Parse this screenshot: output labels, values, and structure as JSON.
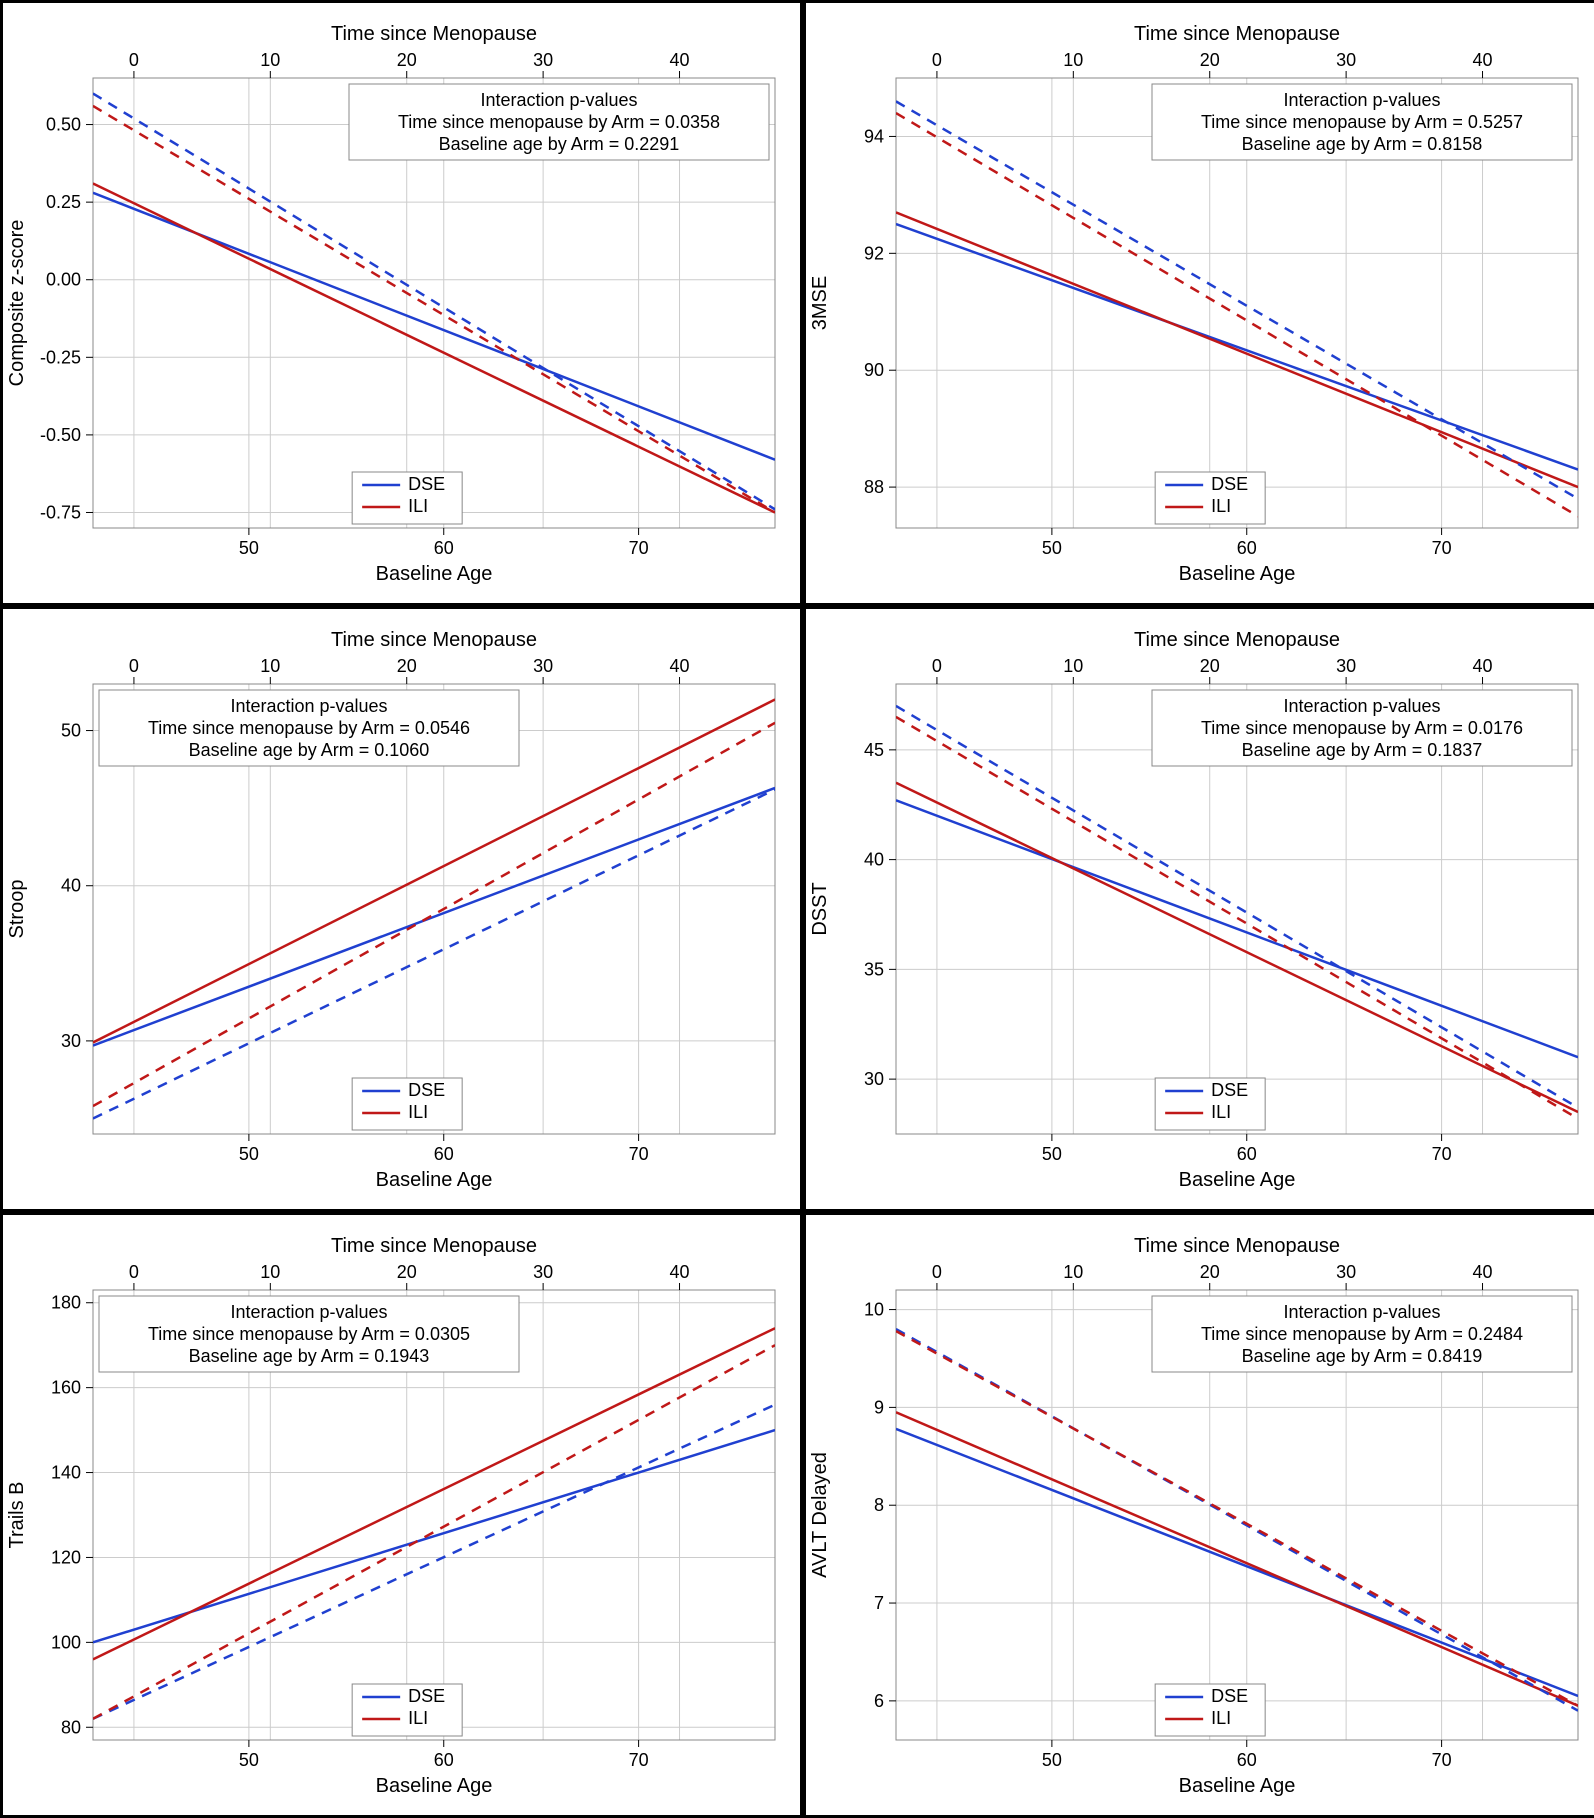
{
  "global": {
    "top_axis_label": "Time since Menopause",
    "bottom_axis_label": "Baseline Age",
    "legend_items": [
      {
        "label": "DSE",
        "color": "#2040d0"
      },
      {
        "label": "ILI",
        "color": "#c01818"
      }
    ],
    "annot_title": "Interaction p-values",
    "top_ticks": [
      0,
      10,
      20,
      30,
      40
    ],
    "bottom_ticks": [
      50,
      60,
      70
    ],
    "bottom_range": [
      42,
      77
    ],
    "top_range": [
      -3,
      47
    ],
    "colors": {
      "dse": "#2040d0",
      "ili": "#c01818",
      "grid": "#cccccc",
      "border": "#888888",
      "bg": "#ffffff"
    },
    "line_width_solid": 2.5,
    "line_width_dash": 2.5,
    "dash_pattern": "10,8",
    "font_family": "Arial",
    "tick_fontsize": 18,
    "title_fontsize": 20,
    "annot_fontsize": 18
  },
  "panels": [
    {
      "ylabel": "Composite z-score",
      "y_ticks": [
        -0.75,
        -0.5,
        -0.25,
        0.0,
        0.25,
        0.5
      ],
      "y_range": [
        -0.8,
        0.65
      ],
      "y_tick_labels": [
        "-0.75",
        "-0.50",
        "-0.25",
        "0.00",
        "0.25",
        "0.50"
      ],
      "annot_pos": "top-right",
      "legend_pos": "bottom-mid",
      "p_time": "Time since menopause by Arm = 0.0358",
      "p_age": "Baseline age by Arm = 0.2291",
      "lines": {
        "dse_solid": {
          "x": [
            42,
            77
          ],
          "y": [
            0.28,
            -0.58
          ]
        },
        "ili_solid": {
          "x": [
            42,
            77
          ],
          "y": [
            0.31,
            -0.75
          ]
        },
        "dse_dash": {
          "x": [
            -3,
            47
          ],
          "y": [
            0.6,
            -0.74
          ]
        },
        "ili_dash": {
          "x": [
            -3,
            47
          ],
          "y": [
            0.56,
            -0.75
          ]
        }
      }
    },
    {
      "ylabel": "3MSE",
      "y_ticks": [
        88,
        90,
        92,
        94
      ],
      "y_range": [
        87.3,
        95.0
      ],
      "y_tick_labels": [
        "88",
        "90",
        "92",
        "94"
      ],
      "annot_pos": "top-right",
      "legend_pos": "bottom-mid",
      "p_time": "Time since menopause by Arm = 0.5257",
      "p_age": "Baseline age by Arm = 0.8158",
      "lines": {
        "dse_solid": {
          "x": [
            42,
            77
          ],
          "y": [
            92.5,
            88.3
          ]
        },
        "ili_solid": {
          "x": [
            42,
            77
          ],
          "y": [
            92.7,
            88.0
          ]
        },
        "dse_dash": {
          "x": [
            -3,
            47
          ],
          "y": [
            94.6,
            87.8
          ]
        },
        "ili_dash": {
          "x": [
            -3,
            47
          ],
          "y": [
            94.4,
            87.5
          ]
        }
      }
    },
    {
      "ylabel": "Stroop",
      "y_ticks": [
        30,
        40,
        50
      ],
      "y_range": [
        24,
        53
      ],
      "y_tick_labels": [
        "30",
        "40",
        "50"
      ],
      "annot_pos": "top-left",
      "legend_pos": "bottom-mid",
      "p_time": "Time since menopause by Arm = 0.0546",
      "p_age": "Baseline age by Arm = 0.1060",
      "lines": {
        "dse_solid": {
          "x": [
            42,
            77
          ],
          "y": [
            29.7,
            46.3
          ]
        },
        "ili_solid": {
          "x": [
            42,
            77
          ],
          "y": [
            29.9,
            52.0
          ]
        },
        "dse_dash": {
          "x": [
            -3,
            47
          ],
          "y": [
            25.0,
            46.2
          ]
        },
        "ili_dash": {
          "x": [
            -3,
            47
          ],
          "y": [
            25.8,
            50.5
          ]
        }
      }
    },
    {
      "ylabel": "DSST",
      "y_ticks": [
        30,
        35,
        40,
        45
      ],
      "y_range": [
        27.5,
        48
      ],
      "y_tick_labels": [
        "30",
        "35",
        "40",
        "45"
      ],
      "annot_pos": "top-right",
      "legend_pos": "bottom-mid",
      "p_time": "Time since menopause by Arm = 0.0176",
      "p_age": "Baseline age by Arm = 0.1837",
      "lines": {
        "dse_solid": {
          "x": [
            42,
            77
          ],
          "y": [
            42.7,
            31.0
          ]
        },
        "ili_solid": {
          "x": [
            42,
            77
          ],
          "y": [
            43.5,
            28.5
          ]
        },
        "dse_dash": {
          "x": [
            -3,
            47
          ],
          "y": [
            47.0,
            28.7
          ]
        },
        "ili_dash": {
          "x": [
            -3,
            47
          ],
          "y": [
            46.5,
            28.2
          ]
        }
      }
    },
    {
      "ylabel": "Trails B",
      "y_ticks": [
        80,
        100,
        120,
        140,
        160,
        180
      ],
      "y_range": [
        77,
        183
      ],
      "y_tick_labels": [
        "80",
        "100",
        "120",
        "140",
        "160",
        "180"
      ],
      "annot_pos": "top-left",
      "legend_pos": "bottom-mid",
      "p_time": "Time since menopause by Arm = 0.0305",
      "p_age": "Baseline age by Arm = 0.1943",
      "lines": {
        "dse_solid": {
          "x": [
            42,
            77
          ],
          "y": [
            100,
            150
          ]
        },
        "ili_solid": {
          "x": [
            42,
            77
          ],
          "y": [
            96,
            174
          ]
        },
        "dse_dash": {
          "x": [
            -3,
            47
          ],
          "y": [
            82,
            156
          ]
        },
        "ili_dash": {
          "x": [
            -3,
            47
          ],
          "y": [
            82,
            170
          ]
        }
      }
    },
    {
      "ylabel": "AVLT Delayed",
      "y_ticks": [
        6,
        7,
        8,
        9,
        10
      ],
      "y_range": [
        5.6,
        10.2
      ],
      "y_tick_labels": [
        "6",
        "7",
        "8",
        "9",
        "10"
      ],
      "annot_pos": "top-right",
      "legend_pos": "bottom-mid",
      "p_time": "Time since menopause by Arm = 0.2484",
      "p_age": "Baseline age by Arm = 0.8419",
      "lines": {
        "dse_solid": {
          "x": [
            42,
            77
          ],
          "y": [
            8.78,
            6.05
          ]
        },
        "ili_solid": {
          "x": [
            42,
            77
          ],
          "y": [
            8.95,
            5.95
          ]
        },
        "dse_dash": {
          "x": [
            -3,
            47
          ],
          "y": [
            9.8,
            5.9
          ]
        },
        "ili_dash": {
          "x": [
            -3,
            47
          ],
          "y": [
            9.78,
            5.95
          ]
        }
      }
    }
  ]
}
